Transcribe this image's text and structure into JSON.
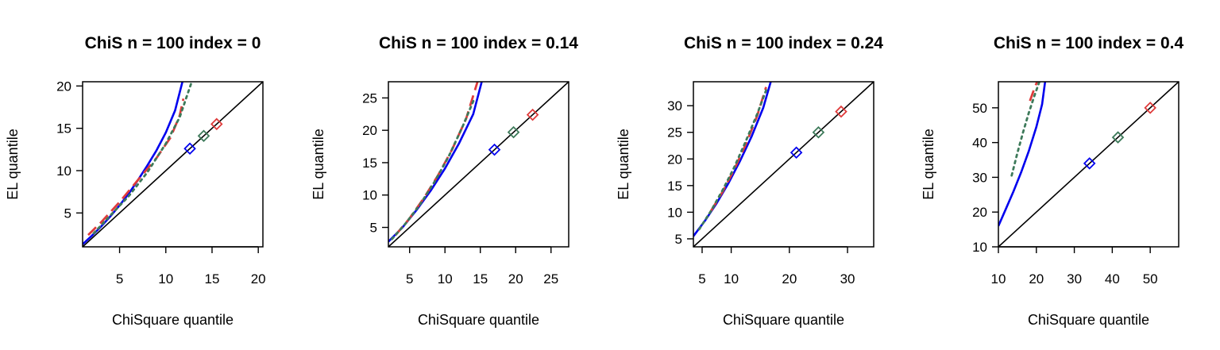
{
  "colors": {
    "blue": "#0000ee",
    "red": "#df3b3b",
    "green": "#3d7a5a",
    "identity": "#000000"
  },
  "chart_data": [
    {
      "type": "line",
      "title": "ChiS n = 100 index = 0",
      "xlabel": "ChiSquare quantile",
      "ylabel": "EL quantile",
      "xlim": [
        1,
        20.5
      ],
      "ylim": [
        1,
        20.5
      ],
      "xticks": [
        5,
        10,
        15,
        20
      ],
      "yticks": [
        5,
        10,
        15,
        20
      ],
      "series": [
        {
          "style": "solid",
          "color": "blue",
          "x": [
            1,
            2,
            3,
            4,
            5,
            6,
            7,
            8,
            9,
            10,
            11,
            11.8
          ],
          "y": [
            1.3,
            2.3,
            3.4,
            4.6,
            5.9,
            7.3,
            8.9,
            10.6,
            12.4,
            14.5,
            17.1,
            20.5
          ]
        },
        {
          "style": "dashed",
          "color": "red",
          "x": [
            1.6,
            3,
            5,
            7,
            9,
            10.5,
            11.5,
            11.9
          ],
          "y": [
            2.4,
            3.9,
            6.3,
            8.9,
            11.5,
            13.9,
            16.5,
            18.5
          ]
        },
        {
          "style": "dotted",
          "color": "green",
          "x": [
            2.2,
            4,
            6,
            8,
            10,
            11.5,
            12.8
          ],
          "y": [
            2.6,
            4.7,
            7,
            9.8,
            13.2,
            16.3,
            20.5
          ]
        }
      ],
      "markers": [
        {
          "color": "blue",
          "x": 12.6,
          "y": 12.6
        },
        {
          "color": "green",
          "x": 14.1,
          "y": 14.1
        },
        {
          "color": "red",
          "x": 15.5,
          "y": 15.5
        }
      ]
    },
    {
      "type": "line",
      "title": "ChiS n = 100 index = 0.14",
      "xlabel": "ChiSquare quantile",
      "ylabel": "EL quantile",
      "xlim": [
        2,
        27.5
      ],
      "ylim": [
        2,
        27.5
      ],
      "xticks": [
        5,
        10,
        15,
        20,
        25
      ],
      "yticks": [
        5,
        10,
        15,
        20,
        25
      ],
      "series": [
        {
          "style": "solid",
          "color": "blue",
          "x": [
            2,
            4,
            6,
            8,
            10,
            12,
            14,
            15.2
          ],
          "y": [
            2.8,
            5,
            7.7,
            10.7,
            14.1,
            18,
            22.5,
            27.5
          ]
        },
        {
          "style": "dashed",
          "color": "red",
          "x": [
            3,
            5,
            7,
            9,
            11,
            13,
            14.6
          ],
          "y": [
            3.8,
            6.4,
            9.5,
            13,
            17,
            21.8,
            27.5
          ]
        },
        {
          "style": "dotted",
          "color": "green",
          "x": [
            2.5,
            4.5,
            6.5,
            8.5,
            10.5,
            12.5,
            14.2
          ],
          "y": [
            3.2,
            5.7,
            8.6,
            12,
            15.9,
            20.6,
            25
          ]
        }
      ],
      "markers": [
        {
          "color": "blue",
          "x": 17,
          "y": 17
        },
        {
          "color": "green",
          "x": 19.7,
          "y": 19.7
        },
        {
          "color": "red",
          "x": 22.4,
          "y": 22.4
        }
      ]
    },
    {
      "type": "line",
      "title": "ChiS n = 100 index = 0.24",
      "xlabel": "ChiSquare quantile",
      "ylabel": "EL quantile",
      "xlim": [
        3.5,
        34.5
      ],
      "ylim": [
        3.5,
        34.5
      ],
      "xticks": [
        5,
        10,
        20,
        30
      ],
      "yticks": [
        5,
        10,
        15,
        20,
        25,
        30
      ],
      "series": [
        {
          "style": "solid",
          "color": "blue",
          "x": [
            3.5,
            5.5,
            7.5,
            9.5,
            11.5,
            13.5,
            15.5,
            16.8
          ],
          "y": [
            5.5,
            8.4,
            11.7,
            15.4,
            19.6,
            24.2,
            29.6,
            34.5
          ]
        },
        {
          "style": "dashed",
          "color": "red",
          "x": [
            6.5,
            8.5,
            10.5,
            12.5,
            14.5,
            16
          ],
          "y": [
            10.2,
            13.8,
            18,
            22.7,
            28.2,
            33.5
          ]
        },
        {
          "style": "dotted",
          "color": "green",
          "x": [
            4.5,
            6.5,
            8.5,
            10.5,
            12.5,
            14.5,
            16.2
          ],
          "y": [
            6.8,
            10.2,
            14.1,
            18.4,
            23.3,
            28.5,
            33.5
          ]
        }
      ],
      "markers": [
        {
          "color": "blue",
          "x": 21.2,
          "y": 21.2
        },
        {
          "color": "green",
          "x": 25,
          "y": 25
        },
        {
          "color": "red",
          "x": 28.9,
          "y": 28.9
        }
      ]
    },
    {
      "type": "line",
      "title": "ChiS n = 100 index = 0.4",
      "xlabel": "ChiSquare quantile",
      "ylabel": "EL quantile",
      "xlim": [
        10,
        57.5
      ],
      "ylim": [
        10,
        57.5
      ],
      "xticks": [
        10,
        20,
        30,
        40,
        50
      ],
      "yticks": [
        10,
        20,
        30,
        40,
        50
      ],
      "series": [
        {
          "style": "solid",
          "color": "blue",
          "x": [
            10,
            12,
            14,
            16,
            18,
            20,
            21.5,
            22.3
          ],
          "y": [
            16,
            21,
            26,
            31.5,
            37.5,
            44.5,
            51,
            57.5
          ]
        },
        {
          "style": "dashed",
          "color": "red",
          "x": [
            18.3,
            19.3,
            20.2
          ],
          "y": [
            52,
            55,
            57.5
          ]
        },
        {
          "style": "dotted",
          "color": "green",
          "x": [
            13.5,
            15,
            16.5,
            18,
            19.5,
            20.8
          ],
          "y": [
            30.5,
            37,
            43,
            48.5,
            53.5,
            57.5
          ]
        }
      ],
      "markers": [
        {
          "color": "blue",
          "x": 34,
          "y": 34
        },
        {
          "color": "green",
          "x": 41.5,
          "y": 41.5
        },
        {
          "color": "red",
          "x": 50,
          "y": 50
        }
      ]
    }
  ]
}
